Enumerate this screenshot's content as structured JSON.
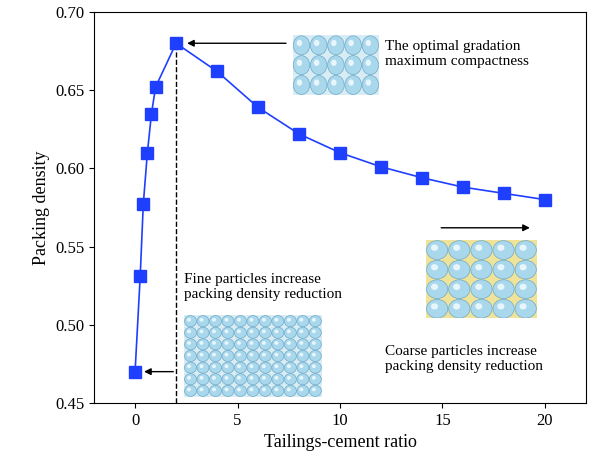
{
  "chart_data": {
    "type": "line",
    "x_label": "Tailings-cement ratio",
    "y_label": "Packing density",
    "x": [
      0,
      0.25,
      0.4,
      0.6,
      0.8,
      1,
      2,
      4,
      6,
      8,
      10,
      12,
      14,
      16,
      18,
      20
    ],
    "values": [
      0.47,
      0.531,
      0.577,
      0.61,
      0.635,
      0.652,
      0.68,
      0.662,
      0.639,
      0.622,
      0.61,
      0.601,
      0.594,
      0.588,
      0.584,
      0.58
    ],
    "color": "#1f3fff",
    "marker": "square",
    "line_style": "solid",
    "xlim": [
      -2,
      22
    ],
    "xticks": [
      0,
      5,
      10,
      15,
      20
    ],
    "ylim": [
      0.45,
      0.7
    ],
    "yticks": [
      0.45,
      {
        "value": 0.5,
        "label": "0.50"
      },
      0.55,
      {
        "value": 0.6,
        "label": "0.60"
      },
      0.65,
      {
        "value": 0.7,
        "label": "0.70"
      }
    ],
    "grid": false,
    "annotations": [
      {
        "text": "The optimal gradation\nmaximum compactness"
      },
      {
        "text": "Fine particles increase\npacking density reduction"
      },
      {
        "text": "Coarse particles increase\npacking density reduction"
      }
    ]
  }
}
